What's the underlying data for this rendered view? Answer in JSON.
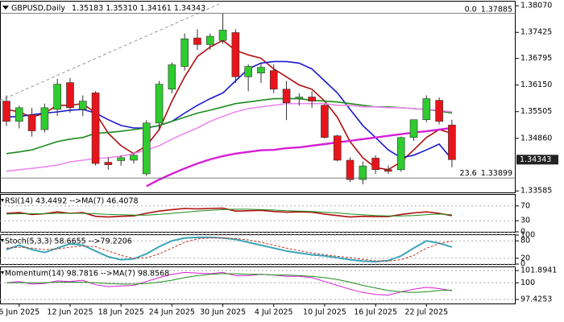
{
  "chart_data": [
    {
      "type": "candlestick",
      "label": "GBPUSD,Daily",
      "header_values": [
        "1.35183",
        "1.35310",
        "1.34161",
        "1.34343"
      ],
      "categories": [
        null,
        "6 Jun 2025",
        null,
        null,
        null,
        "12 Jun 2025",
        null,
        null,
        null,
        "18 Jun 2025",
        null,
        null,
        null,
        "24 Jun 2025",
        null,
        null,
        null,
        "30 Jun 2025",
        null,
        null,
        null,
        "4 Jul 2025",
        null,
        null,
        null,
        "10 Jul 2025",
        null,
        null,
        null,
        "16 Jul 2025",
        null,
        null,
        null,
        "22 Jul 2025",
        null,
        null
      ],
      "open": [
        1.3576,
        1.3527,
        1.3543,
        1.3507,
        1.3556,
        1.3621,
        1.3556,
        1.3596,
        1.3428,
        1.3432,
        1.3433,
        1.34,
        1.3523,
        1.3605,
        1.366,
        1.3729,
        1.3713,
        1.3723,
        1.3742,
        1.3635,
        1.3644,
        1.365,
        1.3605,
        1.3582,
        1.3586,
        1.3566,
        1.3492,
        1.3433,
        1.3386,
        1.3438,
        1.341,
        1.341,
        1.3488,
        1.3531,
        1.3578,
        1.3518
      ],
      "high": [
        1.359,
        1.3565,
        1.356,
        1.357,
        1.363,
        1.3632,
        1.359,
        1.36,
        1.344,
        1.3445,
        1.345,
        1.353,
        1.3625,
        1.367,
        1.374,
        1.375,
        1.374,
        1.3788,
        1.375,
        1.3665,
        1.367,
        1.3665,
        1.3625,
        1.3595,
        1.36,
        1.357,
        1.3495,
        1.344,
        1.343,
        1.3445,
        1.342,
        1.349,
        1.353,
        1.359,
        1.3585,
        1.3531
      ],
      "low": [
        1.3515,
        1.351,
        1.349,
        1.35,
        1.354,
        1.3548,
        1.354,
        1.342,
        1.341,
        1.342,
        1.3425,
        1.3395,
        1.3505,
        1.3595,
        1.365,
        1.37,
        1.37,
        1.3715,
        1.362,
        1.36,
        1.362,
        1.3595,
        1.353,
        1.3565,
        1.356,
        1.3485,
        1.343,
        1.338,
        1.3375,
        1.34,
        1.34,
        1.3405,
        1.348,
        1.3525,
        1.352,
        1.3416
      ],
      "close": [
        1.3527,
        1.356,
        1.3504,
        1.356,
        1.3617,
        1.356,
        1.3576,
        1.3425,
        1.3422,
        1.3439,
        1.3445,
        1.3523,
        1.3617,
        1.3664,
        1.3727,
        1.3713,
        1.3733,
        1.3748,
        1.3635,
        1.366,
        1.3658,
        1.3605,
        1.3572,
        1.3586,
        1.3576,
        1.3488,
        1.3433,
        1.3386,
        1.3419,
        1.341,
        1.3406,
        1.3488,
        1.3531,
        1.3582,
        1.3527,
        1.34343
      ],
      "up_color": "#2ecc2e",
      "down_color": "#e8141b",
      "series": [
        {
          "color": "#b01010",
          "width": 1.6,
          "values": [
            1.3556,
            1.355,
            1.3537,
            1.3547,
            1.3566,
            1.3566,
            1.357,
            1.3547,
            1.3498,
            1.3468,
            1.3449,
            1.3468,
            1.3507,
            1.3576,
            1.3635,
            1.3684,
            1.3707,
            1.3723,
            1.3699,
            1.3688,
            1.368,
            1.3654,
            1.3635,
            1.3615,
            1.3605,
            1.3576,
            1.3537,
            1.3478,
            1.3439,
            1.3415,
            1.341,
            1.3429,
            1.3458,
            1.3488,
            1.3507,
            1.3498
          ]
        },
        {
          "color": "#1a1acc",
          "width": 1.6,
          "values": [
            1.3537,
            1.3539,
            1.3543,
            1.3547,
            1.355,
            1.3554,
            1.3556,
            1.3547,
            1.3531,
            1.3517,
            1.3511,
            1.3511,
            1.3517,
            1.3527,
            1.3547,
            1.3566,
            1.3582,
            1.3596,
            1.3625,
            1.3654,
            1.3668,
            1.3672,
            1.3672,
            1.3668,
            1.3654,
            1.3625,
            1.3596,
            1.3556,
            1.3517,
            1.3488,
            1.3458,
            1.3439,
            1.3445,
            1.3458,
            1.3472,
            1.3435
          ]
        },
        {
          "color": "#1e8c1e",
          "width": 1.6,
          "values": [
            1.3449,
            1.3453,
            1.3458,
            1.3468,
            1.3478,
            1.3484,
            1.3488,
            1.3498,
            1.35,
            1.3503,
            1.3507,
            1.3511,
            1.3517,
            1.3527,
            1.3537,
            1.3547,
            1.3554,
            1.3562,
            1.357,
            1.3574,
            1.3578,
            1.3582,
            1.3582,
            1.3582,
            1.3578,
            1.3576,
            1.3574,
            1.357,
            1.3566,
            1.3562,
            1.3562,
            1.356,
            1.3558,
            1.3556,
            1.3552,
            1.3547
          ]
        },
        {
          "color": "#ee88ee",
          "width": 1.6,
          "values": [
            1.3406,
            1.341,
            1.3413,
            1.3417,
            1.3421,
            1.3429,
            1.3433,
            1.3437,
            1.3439,
            1.3443,
            1.3449,
            1.3458,
            1.3468,
            1.3484,
            1.3498,
            1.3511,
            1.3527,
            1.3539,
            1.355,
            1.3558,
            1.3562,
            1.3566,
            1.357,
            1.357,
            1.357,
            1.357,
            1.3566,
            1.3566,
            1.3562,
            1.3562,
            1.356,
            1.356,
            1.3558,
            1.3556,
            1.3554,
            1.355
          ]
        },
        {
          "color": "#d61fd6",
          "width": 2.4,
          "values": [
            null,
            null,
            null,
            null,
            null,
            null,
            null,
            null,
            null,
            null,
            null,
            1.337,
            1.3386,
            1.34,
            1.3413,
            1.3425,
            1.3435,
            1.3443,
            1.3449,
            1.3453,
            1.3457,
            1.3458,
            1.3462,
            1.3464,
            1.3468,
            1.3472,
            1.3476,
            1.348,
            1.3484,
            1.3488,
            1.3492,
            1.3496,
            1.35,
            1.3503,
            1.3507,
            1.3511
          ]
        }
      ],
      "levels": [
        {
          "label": "0.0",
          "value": 1.37885
        },
        {
          "label": "23.6",
          "value": 1.33899
        }
      ],
      "last_price": 1.34343,
      "ylim": [
        1.3355,
        1.3817
      ],
      "yticks": [
        {
          "value": 1.3807,
          "label": "1.38070"
        },
        {
          "value": 1.37425,
          "label": "1.37425"
        },
        {
          "value": 1.36795,
          "label": "1.36795"
        },
        {
          "value": 1.3615,
          "label": "1.36150"
        },
        {
          "value": 1.35505,
          "label": "1.35505"
        },
        {
          "value": 1.3486,
          "label": "1.34860"
        },
        {
          "value": 1.33585,
          "label": "1.33585"
        }
      ]
    },
    {
      "type": "line",
      "label": "RSI(14) 43.4492 -->MA(7) 46.4078",
      "ylim": [
        0,
        100
      ],
      "yticks": [
        0,
        30,
        70
      ],
      "series": [
        {
          "color": "#b01010",
          "width": 1.6,
          "values": [
            50,
            52,
            47,
            49,
            54,
            50,
            52,
            42,
            40,
            42,
            43,
            50,
            56,
            60,
            63,
            62,
            63,
            64,
            56,
            57,
            58,
            55,
            53,
            54,
            53,
            48,
            44,
            40,
            42,
            41,
            41,
            47,
            51,
            54,
            50,
            43.4492
          ]
        },
        {
          "color": "#1e8c1e",
          "width": 1,
          "values": [
            48,
            49,
            49,
            49,
            50,
            50,
            50,
            49,
            47,
            46,
            45,
            45,
            47,
            50,
            53,
            56,
            58,
            60,
            61,
            61,
            60,
            59,
            57,
            56,
            55,
            53,
            51,
            48,
            46,
            44,
            43,
            43,
            44,
            46,
            48,
            46.4078
          ]
        }
      ]
    },
    {
      "type": "line",
      "label": "Stoch(5,3,3) 58.6655 -->79.2206",
      "ylim": [
        0,
        100
      ],
      "yticks": [
        0,
        20,
        80,
        100
      ],
      "series": [
        {
          "color": "#3aa6b9",
          "width": 2,
          "values": [
            50,
            65,
            50,
            40,
            55,
            70,
            65,
            45,
            25,
            15,
            18,
            35,
            60,
            80,
            90,
            92,
            92,
            90,
            85,
            75,
            65,
            55,
            45,
            38,
            32,
            28,
            22,
            15,
            10,
            8,
            12,
            28,
            55,
            80,
            72,
            58.6655
          ]
        },
        {
          "color": "#c0392b",
          "width": 1,
          "dash": true,
          "values": [
            55,
            58,
            55,
            50,
            52,
            58,
            62,
            60,
            45,
            30,
            20,
            22,
            35,
            55,
            75,
            87,
            90,
            90,
            88,
            83,
            75,
            65,
            55,
            46,
            38,
            32,
            27,
            22,
            16,
            11,
            10,
            15,
            30,
            55,
            70,
            79.2206
          ]
        }
      ]
    },
    {
      "type": "line",
      "label": "Momentum(14) 98.7816 -->MA(7) 98.8568",
      "ylim": [
        96.8,
        102.4
      ],
      "yticks": [
        97.4253,
        100,
        101.8941
      ],
      "series": [
        {
          "color": "#d61fd6",
          "width": 1,
          "values": [
            100,
            100.2,
            99.8,
            99.9,
            100.3,
            100.2,
            100.4,
            99.7,
            99.4,
            99.5,
            99.6,
            100.2,
            100.8,
            101.3,
            101.6,
            101.5,
            101.4,
            101.6,
            101.1,
            101.1,
            101.3,
            101.2,
            101.0,
            101.0,
            100.8,
            100.2,
            99.6,
            99.0,
            98.5,
            98.2,
            98.1,
            98.6,
            99.0,
            99.3,
            99.1,
            98.7816
          ]
        },
        {
          "color": "#1e8c1e",
          "width": 1,
          "values": [
            100,
            100,
            100,
            100,
            100.1,
            100.1,
            100.1,
            100,
            99.9,
            99.8,
            99.8,
            99.9,
            100.1,
            100.4,
            100.8,
            101.1,
            101.3,
            101.4,
            101.4,
            101.3,
            101.3,
            101.2,
            101.2,
            101.1,
            101.0,
            100.8,
            100.5,
            100.1,
            99.6,
            99.2,
            98.8,
            98.6,
            98.5,
            98.6,
            98.8,
            98.8568
          ]
        }
      ]
    }
  ]
}
